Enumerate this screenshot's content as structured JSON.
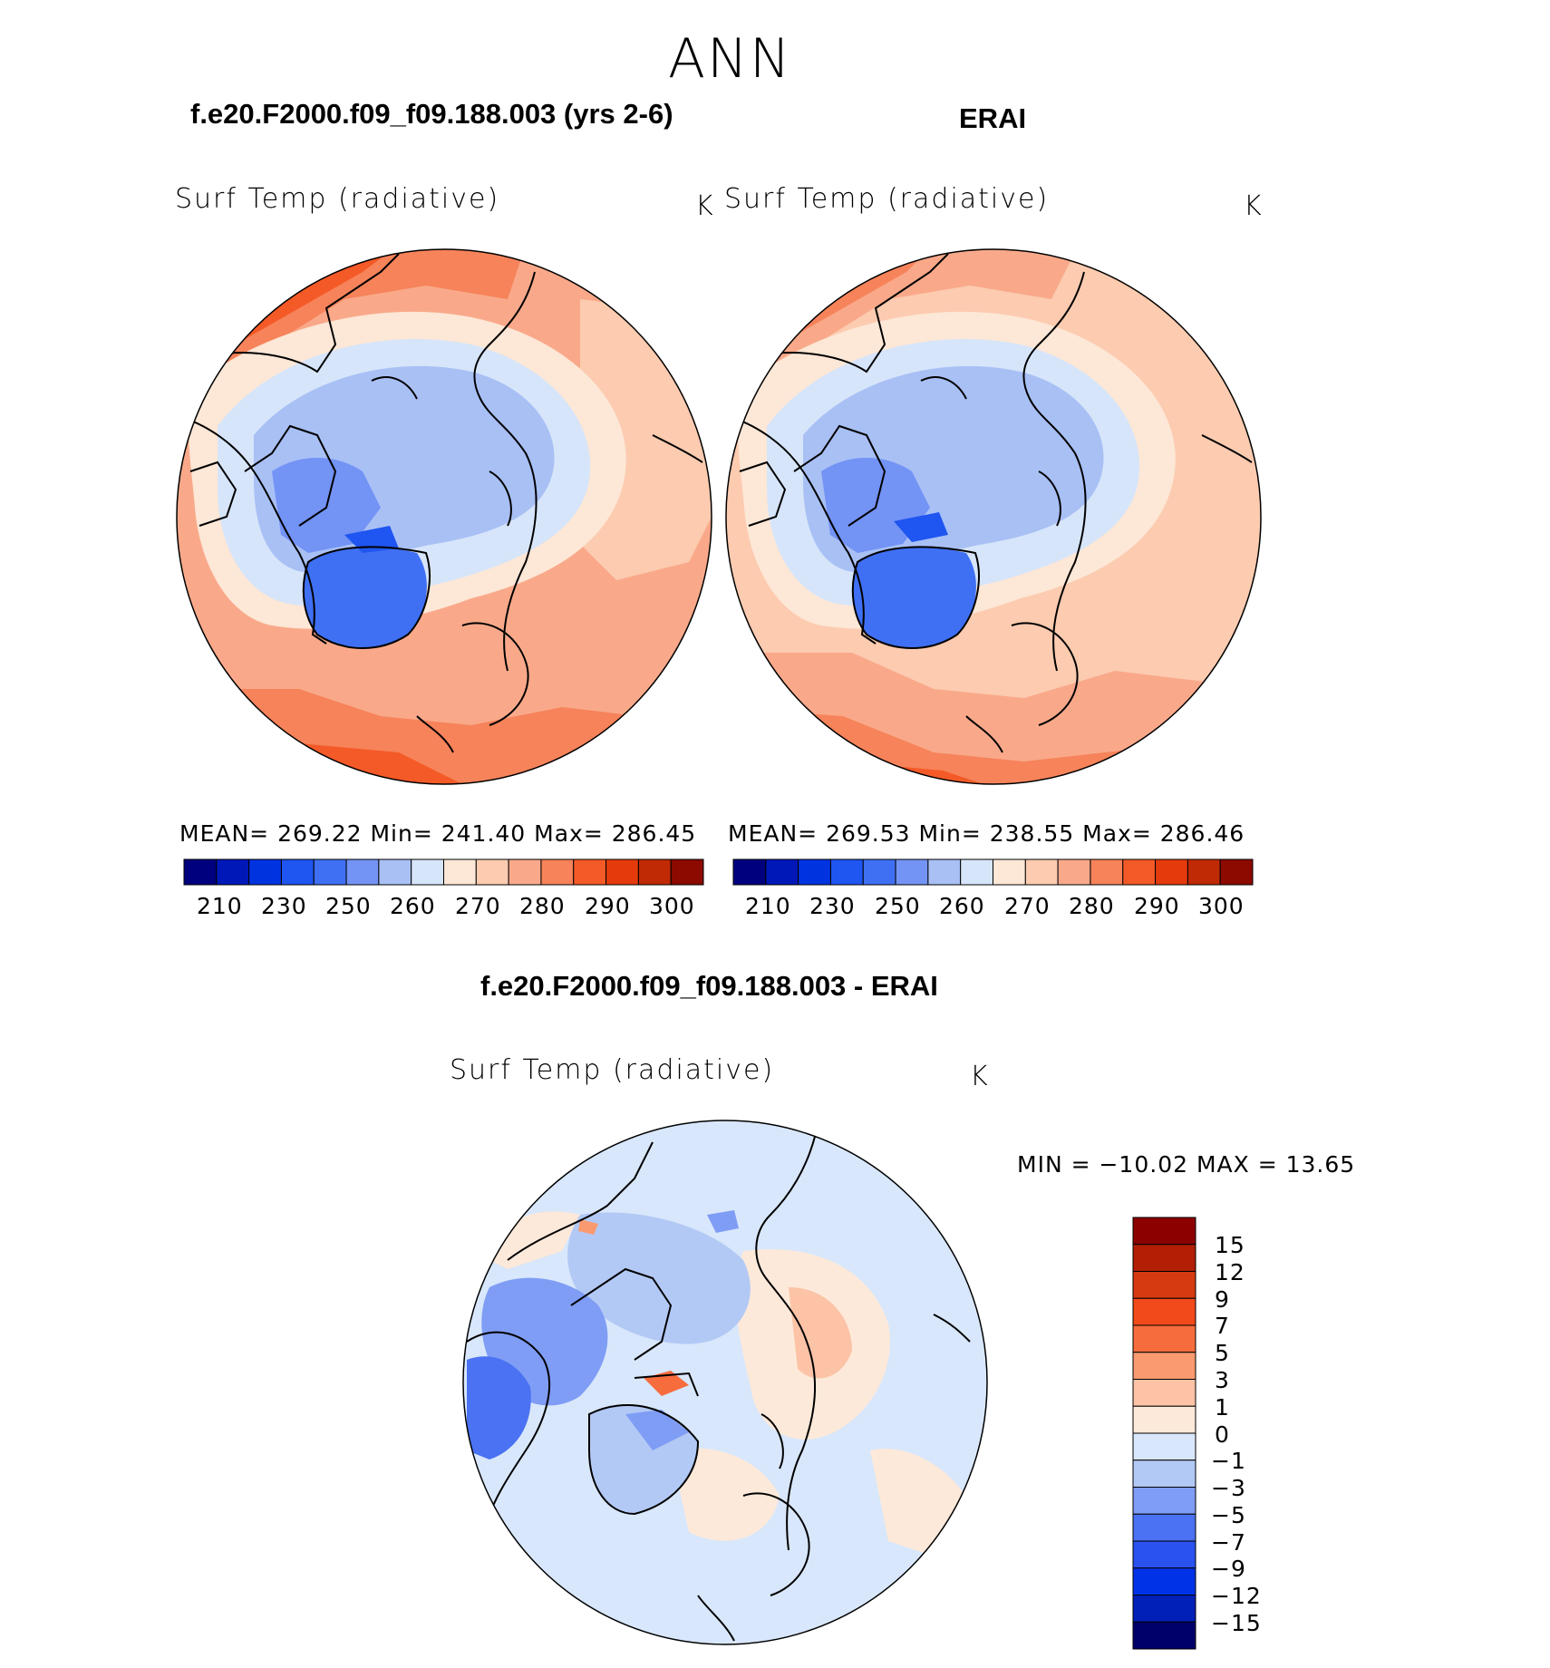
{
  "page": {
    "season": "ANN"
  },
  "colors": {
    "abs_scale": [
      "#00007f",
      "#0018b8",
      "#0033e0",
      "#1f55f0",
      "#3f70f4",
      "#7393f5",
      "#a9c0f5",
      "#d6e5fa",
      "#fde7d6",
      "#fccbb0",
      "#f9a98a",
      "#f6835a",
      "#f45a27",
      "#e53b0c",
      "#c02a04",
      "#8c0a00"
    ],
    "diff_scale": [
      "#00006a",
      "#0020b8",
      "#0033e8",
      "#2a52ef",
      "#4a72f2",
      "#7f9df5",
      "#b3c9f5",
      "#d8e7fb",
      "#fde9da",
      "#fcc3a6",
      "#fa9a70",
      "#f66c3d",
      "#f24a1a",
      "#d63a10",
      "#b21f05",
      "#8c0000"
    ],
    "coastline": "#000000"
  },
  "panels": [
    {
      "case_title": "f.e20.F2000.f09_f09.188.003 (yrs 2-6)",
      "variable": "Surf Temp (radiative)",
      "units": "K",
      "stats": "MEAN=  269.22    Min=  241.40    Max=  286.45",
      "colorbar_ticks": [
        "210",
        "230",
        "250",
        "260",
        "270",
        "280",
        "290",
        "300"
      ]
    },
    {
      "case_title": "ERAI",
      "variable": "Surf Temp (radiative)",
      "units": "K",
      "stats": "MEAN=  269.53    Min=  238.55    Max=  286.46",
      "colorbar_ticks": [
        "210",
        "230",
        "250",
        "260",
        "270",
        "280",
        "290",
        "300"
      ]
    },
    {
      "case_title": "f.e20.F2000.f09_f09.188.003 - ERAI",
      "variable": "Surf Temp (radiative)",
      "units": "K",
      "stats": "MIN  =  −10.02  MAX  =    13.65",
      "colorbar_ticks": [
        "15",
        "12",
        "9",
        "7",
        "5",
        "3",
        "1",
        "0",
        "−1",
        "−3",
        "−5",
        "−7",
        "−9",
        "−12",
        "−15"
      ]
    }
  ]
}
